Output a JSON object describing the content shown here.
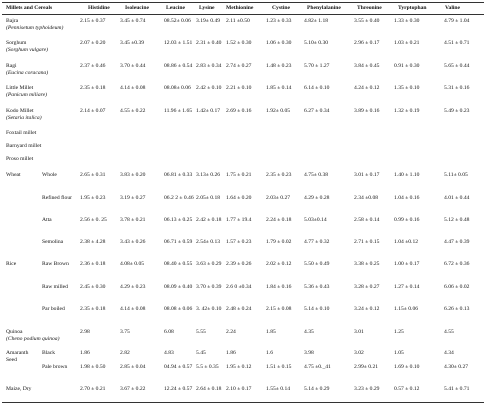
{
  "header": {
    "columns": [
      "Millets and Cereals",
      "Histidine",
      "Isoleucine",
      "Leucine",
      "Lysine",
      "Methionine",
      "Cystine",
      "Phenylalanine",
      "Threonine",
      "Tyrptophan",
      "Valine"
    ]
  },
  "rows": [
    {
      "name": "Bajra",
      "latin": "(Pennisetum typhoideum)",
      "values": [
        "2.15 ± 0.37",
        "3.45 ± 0.74",
        "08.52± 0.06",
        "3.19± 0.49",
        "2.11 ±0.50",
        "1.23 ± 0.33",
        "4.82± 1.18",
        "3.55 ± 0.40",
        "1.33 ± 0.30",
        "4.79 ± 1.04"
      ]
    },
    {
      "name": "Sorghum",
      "latin": "(Sorghum vulgare)",
      "values": [
        "2.07 ± 0.20",
        "3.45 ±0.39",
        "12.03 ± 1.51",
        "2.31 ± 0.40",
        "1.52 ± 0.30",
        "1.06 ± 0.30",
        "5.10± 0.30",
        "2.96 ± 0.17",
        "1.03 ± 0.21",
        "4.51 ± 0.71"
      ]
    },
    {
      "name": "Ragi",
      "latin": "(Eucina coracana)",
      "values": [
        "2.37 ± 0.46",
        "3.70 ± 0.44",
        "08.86 ± 0.54",
        "2.83 ± 0.34",
        "2.74 ± 0.27",
        "1.48 ± 0.23",
        "5.70 ± 1.27",
        "3.84 ± 0.45",
        "0.91 ± 0.30",
        "5.65 ± 0.44"
      ]
    },
    {
      "name": "Little Millet",
      "latin": "(Panicum miliare)",
      "values": [
        "2.35 ± 0.18",
        "4.14 ± 0.08",
        "08.08± 0.06",
        "2.42 ± 0.10",
        "2.21 ± 0.10",
        "1.85 ± 0.14",
        "6.14 ± 0.10",
        "4.24 ± 0.12",
        "1.35 ± 0.10",
        "5.31 ± 0.16"
      ]
    },
    {
      "name": "Kodo Millet",
      "latin": "(Setaria italica)",
      "values": [
        "2.14 ± 0.07",
        "4.55 ± 0.22",
        "11.96 ± 1.65",
        "1.42± 0.17",
        "2.69 ± 0.16",
        "1.92± 0.05",
        "6.27 ± 0.34",
        "3.89 ± 0.16",
        "1.32 ± 0.19",
        "5.49 ± 0.23"
      ]
    },
    {
      "name": "Foxtail millet"
    },
    {
      "name": "Barnyard millet"
    },
    {
      "name": "Proso millet"
    },
    {
      "name": "Wheat",
      "sub": "Whole",
      "values": [
        "2.65 ± 0.31",
        "3.83 ± 0.20",
        "06.81 ± 0.33",
        "3.13± 0.26",
        "1.75 ± 0.21",
        "2.35 ± 0.23",
        "4.75± 0.38",
        "3.01 ± 0.17",
        "1.40 ± 1.10",
        "5.11± 0.05"
      ]
    },
    {
      "sub": "Refined flour",
      "values": [
        "1.95 ± 0.23",
        "3.19 ± 0.27",
        "06.2 2 ± 0.46",
        "2.05± 0.18",
        "1.64 ± 0.20",
        "2.03± 0.27",
        "4.29 ± 0.28",
        "2.34 ±0.08",
        "1.04 ± 0.16",
        "4.01 ± 0.44"
      ]
    },
    {
      "sub": "Atta",
      "values": [
        "2.56 ± 0. 25",
        "3.78 ± 0.21",
        "06.13 ± 0.25",
        "2.42 ± 0.18",
        "1.77 ± 19.4",
        "2.24 ± 0.18",
        "5.03±0.14",
        "2.58 ± 0.14",
        "0.99 ± 0.16",
        "5.12 ± 0.48"
      ]
    },
    {
      "sub": "Semolina",
      "values": [
        "2.38 ± 4.28",
        "3.43 ± 0.26",
        "06.71 ± 0.59",
        "2.54± 0.13",
        "1.57 ± 0.23",
        "1.79 ± 0.02",
        "4.77 ± 0.32",
        "2.71 ± 0.15",
        "1.04 ±0.12",
        "4.47 ± 0.39"
      ]
    },
    {
      "name": "Rice",
      "sub": "Raw Brown",
      "values": [
        "2.36 ± 0.18",
        "4.08± 0.05",
        "08.40 ± 0.55",
        "3.63 ± 0.29",
        "2.39 ± 0.26",
        "2.02 ± 0.12",
        "5.50 ± 0.49",
        "3.38 ± 0.25",
        "1.00 ± 0.17",
        "6.72 ± 0.36"
      ]
    },
    {
      "sub": "Raw milled",
      "values": [
        "2.45 ± 0.30",
        "4.29 ± 0.23",
        "08.09 ± 0.40",
        "3.70 ± 0.39",
        "2.6 0 ±0.34",
        "1.84 ± 0.16",
        "5.36 ± 0.43",
        "3.28 ± 0.27",
        "1.27 ± 0.14",
        "6.06 ± 0.02"
      ]
    },
    {
      "sub": "Par boiled",
      "values": [
        "2.35 ± 0.18",
        "4.14 ± 0.08",
        "08.08 ± 0.06",
        "3. 42± 0.10",
        "2.48 ± 0.24",
        "2.15 ± 0.08",
        "5.14 ± 0.10",
        "3.24 ± 0.12",
        "1.15± 0.06",
        "6.26 ± 0.13"
      ]
    },
    {
      "name": "Quinoa",
      "latin": "(Cheno podium quinoa)",
      "values": [
        "2.98",
        "3.75",
        "6.08",
        "5.55",
        "2.24",
        "1.85",
        "4.35",
        "3.01",
        "1.25",
        "4.55"
      ]
    },
    {
      "name": "Amaranth Seed",
      "sub": "Black",
      "values": [
        "1.86",
        "2.82",
        "4.83",
        "5.45",
        "1.86",
        "1.6",
        "3.98",
        "3.02",
        "1.05",
        "4.34"
      ]
    },
    {
      "sub": "Pale brown",
      "values": [
        "1.98 ± 0.50",
        "2.85 ± 0.04",
        "04.94 ± 0.57",
        "5.5 ± 0.35",
        "1.95 ± 0.12",
        "1.51 ± 0.15",
        "4.75 ±0._41",
        "2.99± 0.21",
        "1.69 ± 0.10",
        "4.30± 0.27"
      ]
    },
    {
      "name": "Maize, Dry",
      "values": [
        "2.70 ± 0.21",
        "3.67 ± 0.22",
        "12.24 ± 0.57",
        "2.64 ± 0.18",
        "2.10 ± 0.17",
        "1.55± 0.14",
        "5.14 ± 0.29",
        "3.23 ± 0.29",
        "0.57 ± 0.12",
        "5.41 ± 0.71"
      ]
    }
  ]
}
